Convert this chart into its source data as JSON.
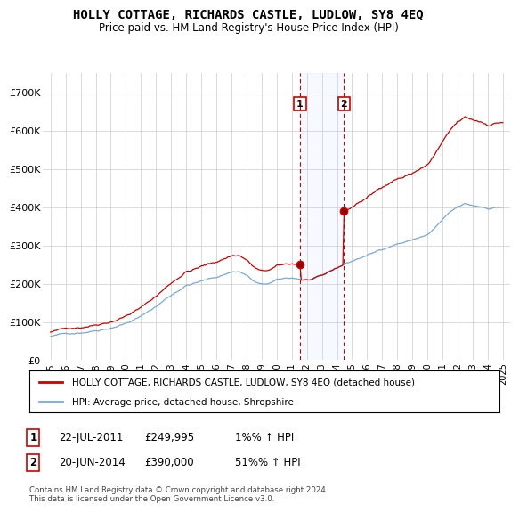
{
  "title": "HOLLY COTTAGE, RICHARDS CASTLE, LUDLOW, SY8 4EQ",
  "subtitle": "Price paid vs. HM Land Registry's House Price Index (HPI)",
  "ylim": [
    0,
    750000
  ],
  "yticks": [
    0,
    100000,
    200000,
    300000,
    400000,
    500000,
    600000,
    700000
  ],
  "ytick_labels": [
    "£0",
    "£100K",
    "£200K",
    "£300K",
    "£400K",
    "£500K",
    "£600K",
    "£700K"
  ],
  "hpi_color": "#7aa8d4",
  "price_color": "#cc0000",
  "grid_color": "#cccccc",
  "legend_property": "HOLLY COTTAGE, RICHARDS CASTLE, LUDLOW, SY8 4EQ (detached house)",
  "legend_hpi": "HPI: Average price, detached house, Shropshire",
  "footnote": "Contains HM Land Registry data © Crown copyright and database right 2024.\nThis data is licensed under the Open Government Licence v3.0.",
  "trans1_date": "22-JUL-2011",
  "trans1_price": 249995,
  "trans1_hpi": "1%",
  "trans1_x": 2011.55,
  "trans2_date": "20-JUN-2014",
  "trans2_price": 390000,
  "trans2_hpi": "51%",
  "trans2_x": 2014.46,
  "xlim_left": 1994.5,
  "xlim_right": 2025.5
}
